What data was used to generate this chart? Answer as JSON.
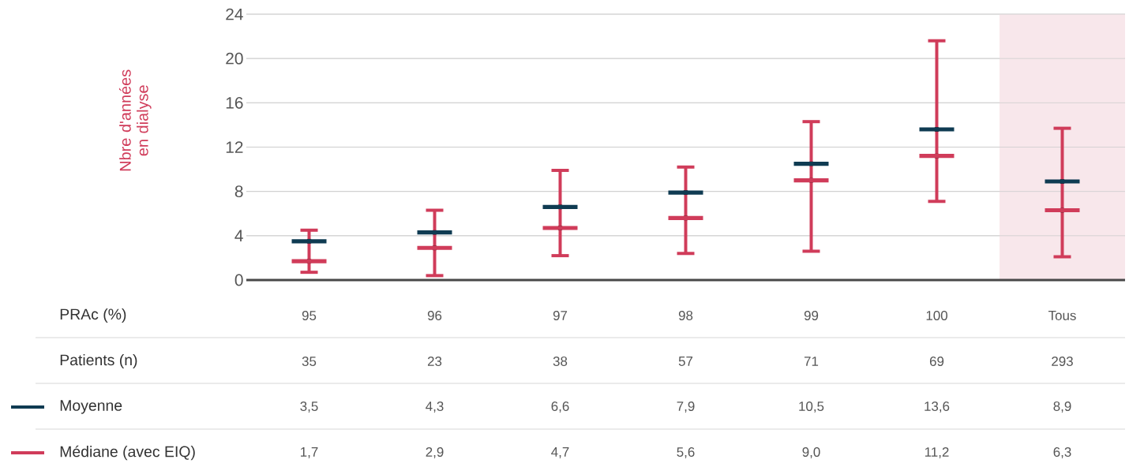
{
  "chart_data": {
    "type": "scatter",
    "ylabel": "Nbre d'années en dialyse",
    "categories": [
      "95",
      "96",
      "97",
      "98",
      "99",
      "100",
      "Tous"
    ],
    "series": [
      {
        "name": "Moyenne",
        "color": "#0f3b52",
        "values": [
          3.5,
          4.3,
          6.6,
          7.9,
          10.5,
          13.6,
          8.9
        ],
        "value_labels": [
          "3,5",
          "4,3",
          "6,6",
          "7,9",
          "10,5",
          "13,6",
          "8,9"
        ]
      },
      {
        "name": "Médiane (avec EIQ)",
        "color": "#d03c5a",
        "values": [
          1.7,
          2.9,
          4.7,
          5.6,
          9.0,
          11.2,
          6.3
        ],
        "errors": [
          [
            0.7,
            4.5
          ],
          [
            0.4,
            6.3
          ],
          [
            2.2,
            9.9
          ],
          [
            2.4,
            10.2
          ],
          [
            2.6,
            14.3
          ],
          [
            7.1,
            21.6
          ],
          [
            2.1,
            13.7
          ]
        ],
        "value_labels": [
          "1,7",
          "2,9",
          "4,7",
          "5,6",
          "9,0",
          "11,2",
          "6,3"
        ]
      }
    ],
    "bands": [
      {
        "axis": "x",
        "from": "Tous",
        "to": "Tous",
        "color": "#f8e7eb"
      }
    ],
    "annotations": [
      "PRAc (%)",
      "Patients (n)",
      "35",
      "23",
      "38",
      "57",
      "71",
      "69",
      "293"
    ],
    "ylim": [
      0,
      24
    ],
    "yticks": [
      0,
      4,
      8,
      12,
      16,
      20,
      24
    ],
    "grid": "y",
    "legend": "bottom left"
  }
}
